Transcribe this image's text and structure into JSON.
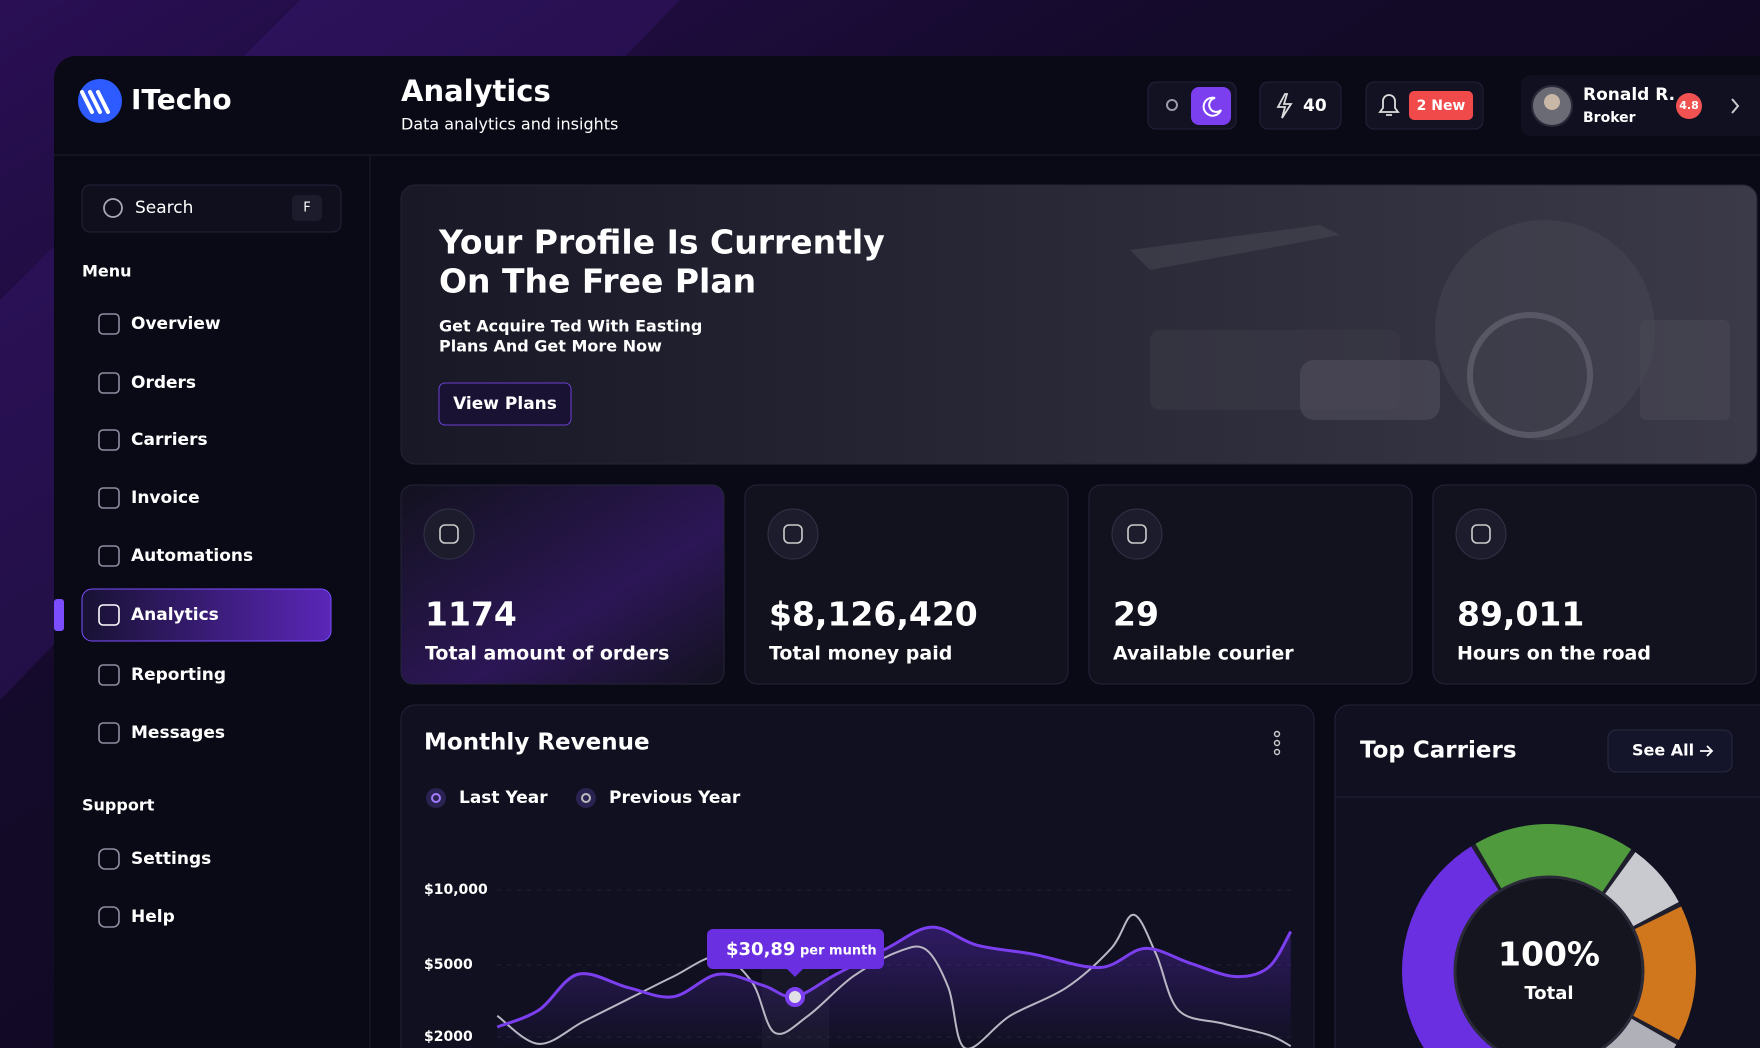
{
  "brand": "ITecho",
  "header": {
    "title": "Analytics",
    "subtitle": "Data analytics and insights",
    "energy": "40",
    "notifications": "2 New",
    "user": {
      "name": "Ronald R.",
      "role": "Broker",
      "rating": "4.8"
    }
  },
  "sidebar": {
    "search": "Search",
    "search_key": "F",
    "menu_label": "Menu",
    "menu": [
      "Overview",
      "Orders",
      "Carriers",
      "Invoice",
      "Automations",
      "Analytics",
      "Reporting",
      "Messages"
    ],
    "support_label": "Support",
    "support": [
      "Settings",
      "Help"
    ]
  },
  "banner": {
    "title_lines": [
      "Your Profile Is Currently",
      "On The Free Plan"
    ],
    "text_lines": [
      "Get Acquire Ted With Easting",
      "Plans And Get More Now"
    ],
    "button": "View Plans"
  },
  "stats": [
    {
      "value": "1174",
      "label": "Total amount of orders"
    },
    {
      "value": "$8,126,420",
      "label": "Total money paid"
    },
    {
      "value": "29",
      "label": "Available courier"
    },
    {
      "value": "89,011",
      "label": "Hours on the road"
    }
  ],
  "revenue": {
    "title": "Monthly Revenue",
    "legend": [
      "Last Year",
      "Previous Year"
    ],
    "yticks": [
      "$10,000",
      "$5000",
      "$2000"
    ],
    "tooltip": {
      "value": "$30,89",
      "unit": "per munth"
    }
  },
  "carriers": {
    "title": "Top Carriers",
    "button": "See All",
    "total": "100%",
    "total_label": "Total"
  }
}
